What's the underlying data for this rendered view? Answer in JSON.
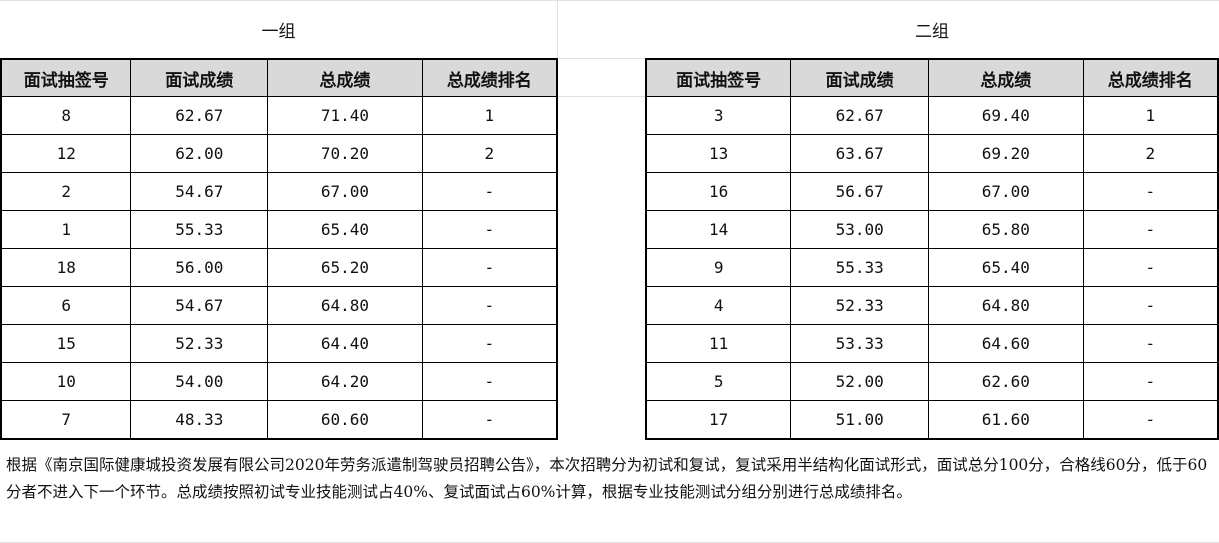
{
  "groups": [
    {
      "title": "一组",
      "headers": [
        "面试抽签号",
        "面试成绩",
        "总成绩",
        "总成绩排名"
      ],
      "rows": [
        [
          "8",
          "62.67",
          "71.40",
          "1"
        ],
        [
          "12",
          "62.00",
          "70.20",
          "2"
        ],
        [
          "2",
          "54.67",
          "67.00",
          "-"
        ],
        [
          "1",
          "55.33",
          "65.40",
          "-"
        ],
        [
          "18",
          "56.00",
          "65.20",
          "-"
        ],
        [
          "6",
          "54.67",
          "64.80",
          "-"
        ],
        [
          "15",
          "52.33",
          "64.40",
          "-"
        ],
        [
          "10",
          "54.00",
          "64.20",
          "-"
        ],
        [
          "7",
          "48.33",
          "60.60",
          "-"
        ]
      ]
    },
    {
      "title": "二组",
      "headers": [
        "面试抽签号",
        "面试成绩",
        "总成绩",
        "总成绩排名"
      ],
      "rows": [
        [
          "3",
          "62.67",
          "69.40",
          "1"
        ],
        [
          "13",
          "63.67",
          "69.20",
          "2"
        ],
        [
          "16",
          "56.67",
          "67.00",
          "-"
        ],
        [
          "14",
          "53.00",
          "65.80",
          "-"
        ],
        [
          "9",
          "55.33",
          "65.40",
          "-"
        ],
        [
          "4",
          "52.33",
          "64.80",
          "-"
        ],
        [
          "11",
          "53.33",
          "64.60",
          "-"
        ],
        [
          "5",
          "52.00",
          "62.60",
          "-"
        ],
        [
          "17",
          "51.00",
          "61.60",
          "-"
        ]
      ]
    }
  ],
  "note": "根据《南京国际健康城投资发展有限公司2020年劳务派遣制驾驶员招聘公告》，本次招聘分为初试和复试，复试采用半结构化面试形式，面试总分100分，合格线60分，低于60分者不进入下一个环节。总成绩按照初试专业技能测试占40%、复试面试占60%计算，根据专业技能测试分组分别进行总成绩排名。"
}
